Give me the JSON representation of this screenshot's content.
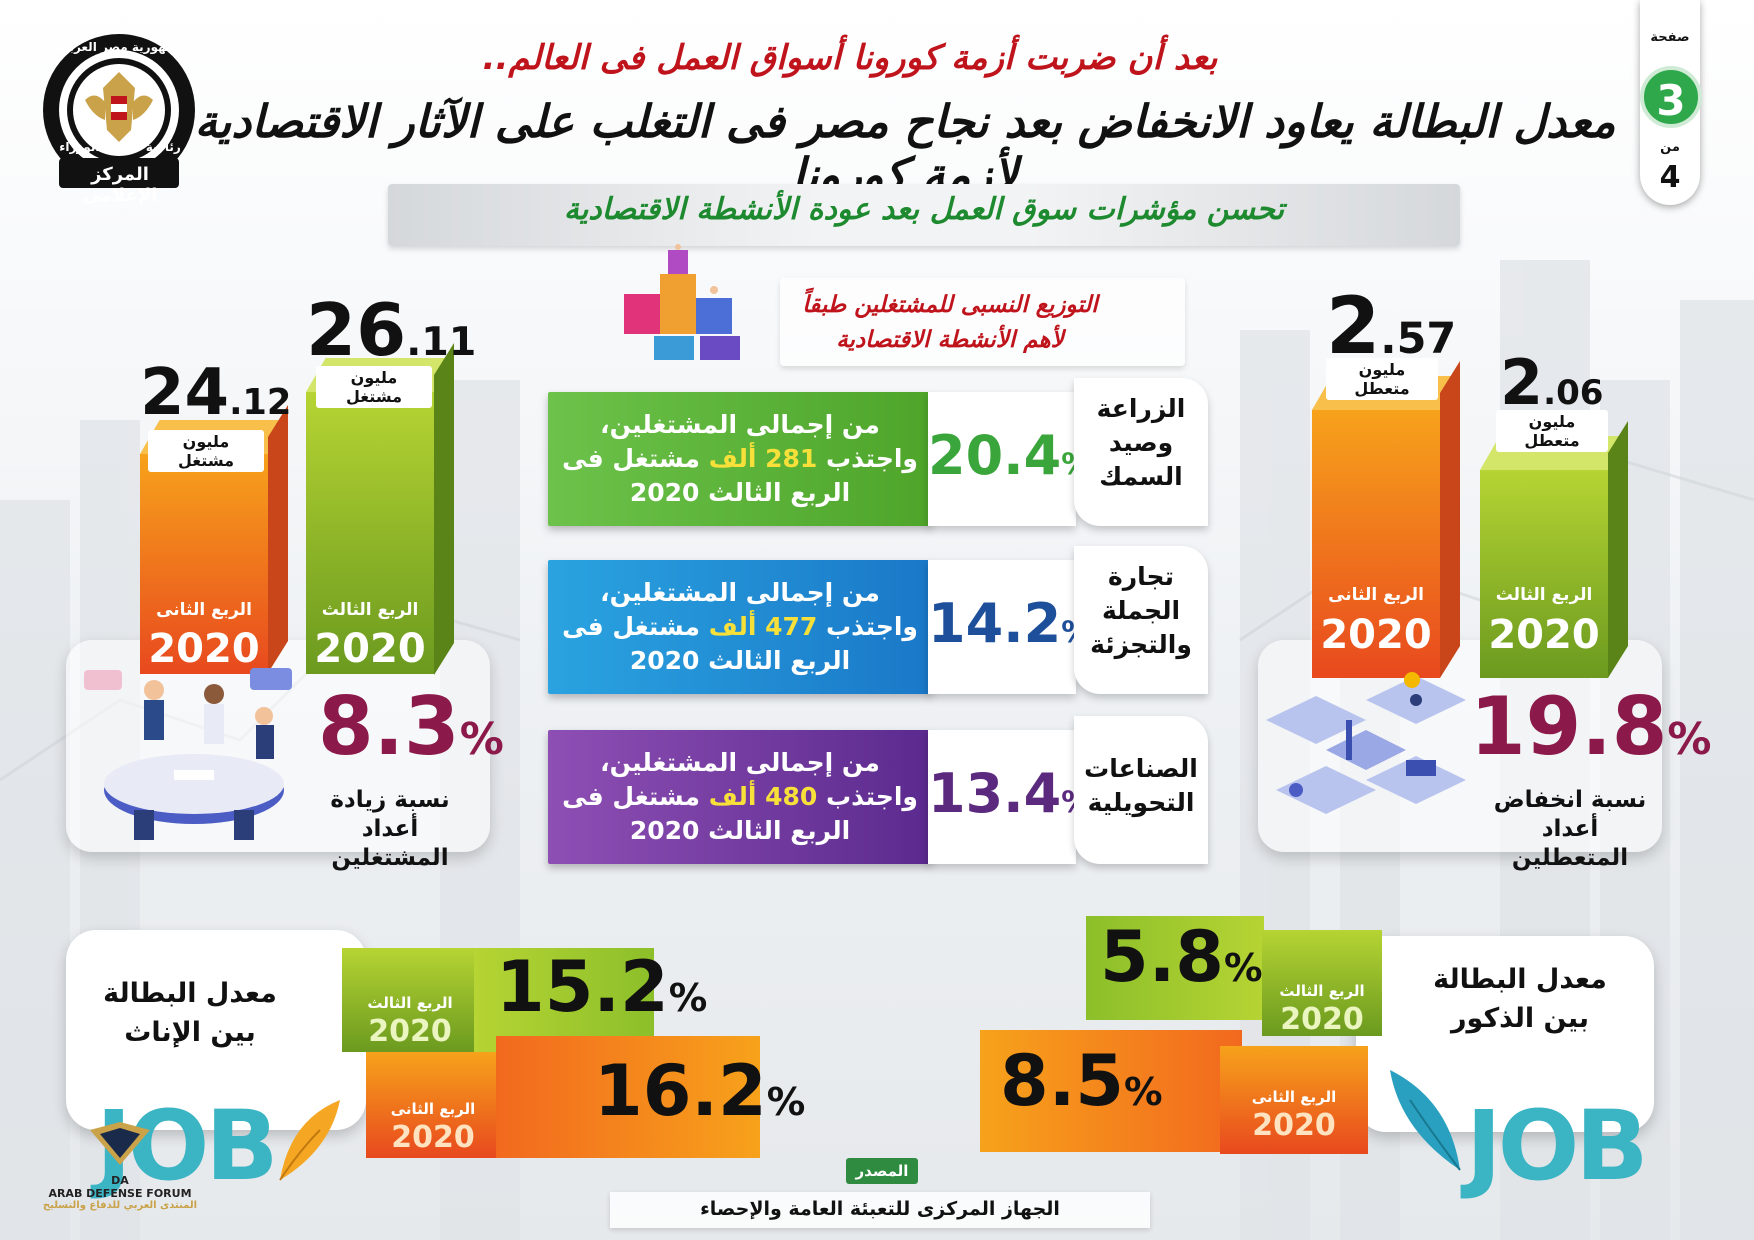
{
  "header": {
    "title_top": "بعد أن ضربت أزمة كورونا أسواق العمل فى العالم..",
    "title_main": "معدل البطالة يعاود الانخفاض بعد نجاح مصر فى التغلب على الآثار الاقتصادية لأزمة كورونا",
    "subtitle": "تحسن مؤشرات سوق العمل بعد عودة الأنشطة الاقتصادية"
  },
  "logo": {
    "arc_top": "جمهورية مصر العربية",
    "arc_bottom": "رئاسة مجلس الوزراء",
    "ribbon": "المركز الإعلامى"
  },
  "pager": {
    "page_label": "صفحة",
    "page": "3",
    "of_label": "من",
    "total": "4"
  },
  "employed": {
    "q2": {
      "int": "24",
      "dec": ".12",
      "unit": "مليون مشتغل",
      "quarter": "الربع الثانى",
      "year": "2020"
    },
    "q3": {
      "int": "26",
      "dec": ".11",
      "unit": "مليون مشتغل",
      "quarter": "الربع الثالث",
      "year": "2020"
    },
    "change_value": "8.3",
    "change_sign": "%",
    "change_note_l1": "نسبة زيادة أعداد",
    "change_note_l2": "المشتغلين"
  },
  "unemployed": {
    "q2": {
      "int": "2",
      "dec": ".57",
      "unit": "مليون متعطل",
      "quarter": "الربع الثانى",
      "year": "2020"
    },
    "q3": {
      "int": "2",
      "dec": ".06",
      "unit": "مليون متعطل",
      "quarter": "الربع الثالث",
      "year": "2020"
    },
    "change_value": "19.8",
    "change_sign": "%",
    "change_note_l1": "نسبة انخفاض أعداد",
    "change_note_l2": "المتعطلين"
  },
  "distribution": {
    "title_l1": "التوزيع النسبى للمشتغلين طبقاً",
    "title_l2": "لأهم الأنشطة الاقتصادية",
    "rows": [
      {
        "sector_l1": "الزراعة",
        "sector_l2": "وصيد",
        "sector_l3": "السمك",
        "pct": "20.4",
        "sign": "%",
        "line1": "من إجمالى المشتغلين،",
        "line2a": "واجتذب",
        "count": "281 ألف",
        "line2b": "مشتغل فى",
        "line3": "الربع الثالث 2020",
        "color": "#6cc24a",
        "pct_color": "#3aa53a"
      },
      {
        "sector_l1": "تجارة",
        "sector_l2": "الجملة",
        "sector_l3": "والتجزئة",
        "pct": "14.2",
        "sign": "%",
        "line1": "من إجمالى المشتغلين،",
        "line2a": "واجتذب",
        "count": "477 ألف",
        "line2b": "مشتغل فى",
        "line3": "الربع الثالث 2020",
        "color": "#1f8fd6",
        "pct_color": "#1e4f9a"
      },
      {
        "sector_l1": "الصناعات",
        "sector_l2": "التحويلية",
        "sector_l3": "",
        "pct": "13.4",
        "sign": "%",
        "line1": "من إجمالى المشتغلين،",
        "line2a": "واجتذب",
        "count": "480 ألف",
        "line2b": "مشتغل فى",
        "line3": "الربع الثالث 2020",
        "color": "#7b3f9e",
        "pct_color": "#5b2a7e"
      }
    ]
  },
  "unemployment_rate": {
    "female": {
      "title_l1": "معدل البطالة",
      "title_l2": "بين الإناث",
      "q3": {
        "quarter": "الربع الثالث",
        "year": "2020",
        "value": "15.2",
        "sign": "%"
      },
      "q2": {
        "quarter": "الربع الثانى",
        "year": "2020",
        "value": "16.2",
        "sign": "%"
      }
    },
    "male": {
      "title_l1": "معدل البطالة",
      "title_l2": "بين الذكور",
      "q3": {
        "quarter": "الربع الثالث",
        "year": "2020",
        "value": "5.8",
        "sign": "%"
      },
      "q2": {
        "quarter": "الربع الثانى",
        "year": "2020",
        "value": "8.5",
        "sign": "%"
      }
    }
  },
  "decor": {
    "job_word": "JOB"
  },
  "source": {
    "label": "المصدر",
    "text": "الجهاز المركزى للتعبئة العامة والإحصاء"
  },
  "watermark": {
    "abbr": "DA",
    "name_en": "ARAB DEFENSE FORUM",
    "name_ar": "المنتدى العربي للدفاع والتسليح"
  },
  "colors": {
    "orange_top": "#f7a21b",
    "orange_bottom": "#e8491e",
    "green_top": "#b6d433",
    "green_bottom": "#6b9a1f",
    "title_red": "#c0141c",
    "accent_green": "#1e8a2f",
    "pct_maroon": "#8b1a4a"
  }
}
